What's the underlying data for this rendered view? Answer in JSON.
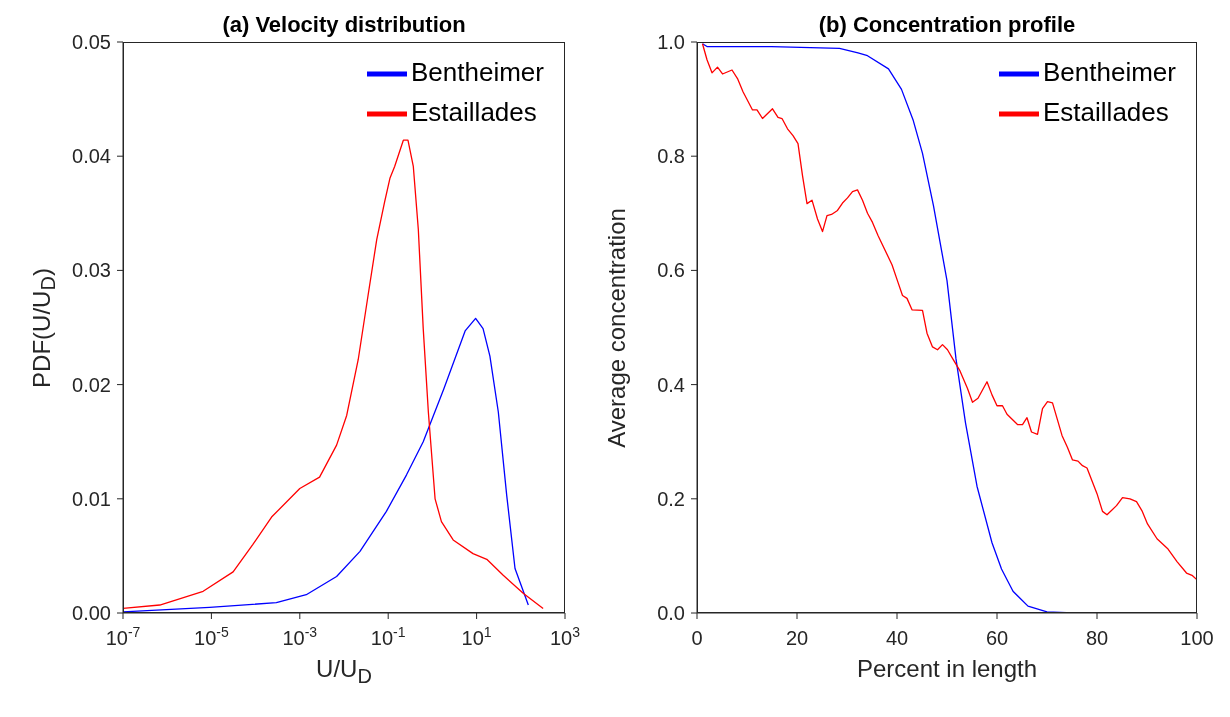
{
  "chart_data": [
    {
      "type": "line",
      "title": "(a) Velocity distribution",
      "xlabel": "U/U$_{D}$",
      "ylabel": "PDF(U/U$_{D}$)",
      "log": "x",
      "legend": "top right",
      "xlim": [
        1e-07,
        1000
      ],
      "ylim": [
        0,
        0.05
      ],
      "xticks": [
        {
          "value": 1e-07,
          "label": "10$^{-7}$"
        },
        {
          "value": 1e-05,
          "label": "10$^{-5}$"
        },
        {
          "value": 0.001,
          "label": "10$^{-3}$"
        },
        {
          "value": 0.1,
          "label": "10$^{-1}$"
        },
        {
          "value": 10,
          "label": "10$^{1}$"
        },
        {
          "value": 1000,
          "label": "10$^{3}$"
        }
      ],
      "yticks": [
        {
          "value": 0,
          "label": "0.00"
        },
        {
          "value": 0.01,
          "label": "0.01"
        },
        {
          "value": 0.02,
          "label": "0.02"
        },
        {
          "value": 0.03,
          "label": "0.03"
        },
        {
          "value": 0.04,
          "label": "0.04"
        },
        {
          "value": 0.05,
          "label": "0.05"
        }
      ],
      "series": [
        {
          "name": "Bentheimer",
          "color": "#0000ff",
          "x": [
            1e-07,
            9.1e-06,
            0.000295,
            0.0014,
            0.0068,
            0.023,
            0.091,
            0.26,
            0.62,
            1.8,
            5.5,
            9.5,
            14,
            20,
            31,
            48,
            74,
            148
          ],
          "values": [
            0.0001,
            0.0005,
            0.0009,
            0.0016,
            0.0032,
            0.0054,
            0.0089,
            0.0121,
            0.015,
            0.0196,
            0.0247,
            0.0258,
            0.0249,
            0.0225,
            0.0176,
            0.0103,
            0.0039,
            0.0007
          ]
        },
        {
          "name": "Estaillades",
          "color": "#ff0000",
          "x": [
            1e-07,
            6.8e-07,
            6.5e-06,
            3.1e-05,
            8.7e-05,
            0.00023,
            0.001,
            0.0028,
            0.0068,
            0.0115,
            0.021,
            0.035,
            0.055,
            0.083,
            0.11,
            0.14,
            0.22,
            0.28,
            0.37,
            0.48,
            0.62,
            0.81,
            1.15,
            1.6,
            2.95,
            8.3,
            17,
            40,
            115,
            320
          ],
          "values": [
            0.0004,
            0.0007,
            0.0019,
            0.0036,
            0.006,
            0.0084,
            0.0109,
            0.0119,
            0.0147,
            0.0173,
            0.0222,
            0.0278,
            0.0327,
            0.036,
            0.0381,
            0.0391,
            0.0414,
            0.0414,
            0.0391,
            0.0336,
            0.0249,
            0.0176,
            0.01,
            0.008,
            0.0064,
            0.0052,
            0.0047,
            0.0033,
            0.0017,
            0.0004
          ]
        }
      ]
    },
    {
      "type": "line",
      "title": "(b) Concentration profile",
      "xlabel": "Percent in length",
      "ylabel": "Average concentration",
      "legend": "top right",
      "xlim": [
        0,
        100
      ],
      "ylim": [
        0,
        1
      ],
      "xticks": [
        0,
        20,
        40,
        60,
        80,
        100
      ],
      "yticks": [
        {
          "value": 0,
          "label": "0.0"
        },
        {
          "value": 0.2,
          "label": "0.2"
        },
        {
          "value": 0.4,
          "label": "0.4"
        },
        {
          "value": 0.6,
          "label": "0.6"
        },
        {
          "value": 0.8,
          "label": "0.8"
        },
        {
          "value": 1,
          "label": "1.0"
        }
      ],
      "series": [
        {
          "name": "Bentheimer",
          "color": "#0000ff",
          "x": [
            1.1,
            2,
            14.9,
            28.5,
            32.2,
            34.1,
            38.3,
            40.9,
            43.2,
            45.1,
            47.3,
            50,
            51.8,
            53.7,
            56,
            59,
            60.9,
            63.2,
            66.2,
            70,
            75.2,
            100
          ],
          "values": [
            0.997,
            0.992,
            0.992,
            0.989,
            0.981,
            0.976,
            0.953,
            0.917,
            0.864,
            0.805,
            0.713,
            0.582,
            0.445,
            0.333,
            0.222,
            0.123,
            0.077,
            0.038,
            0.012,
            0.002,
            0,
            0
          ]
        },
        {
          "name": "Estaillades",
          "color": "#ff0000",
          "x": [
            1.1,
            2,
            3,
            4.1,
            5.1,
            7,
            8.1,
            9.2,
            11.1,
            12,
            13.1,
            15.1,
            16.2,
            17,
            18.1,
            19.2,
            20.2,
            21.1,
            22,
            23,
            24.1,
            25.1,
            26,
            26.9,
            28.1,
            29.1,
            30.1,
            31.1,
            32.1,
            33.1,
            34.1,
            35.1,
            36.2,
            39,
            40.2,
            41.1,
            42,
            43,
            45.1,
            46,
            47.1,
            48.1,
            49.1,
            50.1,
            51.1,
            52.6,
            54.1,
            55.1,
            56.2,
            58,
            59,
            60,
            61.1,
            62,
            64.1,
            65.1,
            66,
            66.9,
            68.1,
            69.1,
            70.1,
            71.1,
            73,
            74.1,
            75.1,
            76.2,
            77.1,
            78,
            80,
            81.1,
            82,
            83.9,
            85.1,
            86.6,
            87.9,
            89,
            90.1,
            92,
            94.1,
            96,
            97.9,
            99,
            100
          ],
          "values": [
            0.997,
            0.969,
            0.946,
            0.956,
            0.944,
            0.951,
            0.936,
            0.913,
            0.881,
            0.881,
            0.866,
            0.883,
            0.868,
            0.866,
            0.848,
            0.836,
            0.822,
            0.766,
            0.717,
            0.723,
            0.69,
            0.668,
            0.696,
            0.698,
            0.705,
            0.718,
            0.727,
            0.738,
            0.741,
            0.723,
            0.7,
            0.684,
            0.661,
            0.61,
            0.579,
            0.556,
            0.551,
            0.531,
            0.53,
            0.49,
            0.466,
            0.461,
            0.47,
            0.461,
            0.446,
            0.424,
            0.393,
            0.369,
            0.376,
            0.405,
            0.382,
            0.363,
            0.363,
            0.348,
            0.33,
            0.33,
            0.342,
            0.317,
            0.313,
            0.358,
            0.37,
            0.368,
            0.311,
            0.29,
            0.268,
            0.266,
            0.258,
            0.254,
            0.209,
            0.178,
            0.172,
            0.188,
            0.202,
            0.2,
            0.195,
            0.179,
            0.156,
            0.13,
            0.113,
            0.09,
            0.07,
            0.066,
            0.058
          ]
        }
      ]
    }
  ]
}
